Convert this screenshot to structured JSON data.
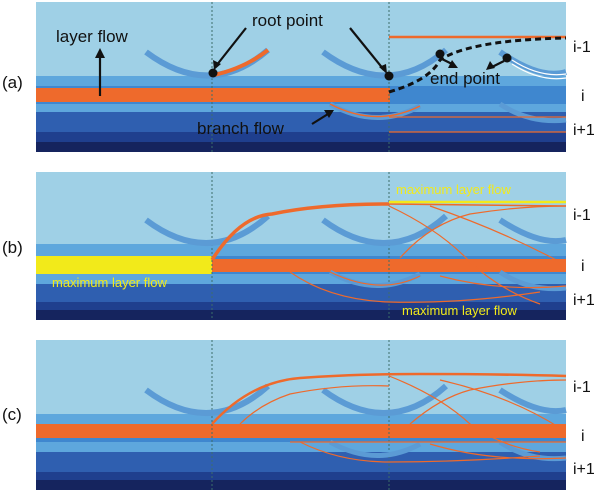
{
  "panels": [
    {
      "id": "(a)",
      "level_labels": [
        "i-1",
        "i",
        "i+1"
      ],
      "annotations": {
        "layer_flow": "layer flow",
        "root_point": "root point",
        "end_point": "end point",
        "branch_flow": "branch flow"
      }
    },
    {
      "id": "(b)",
      "level_labels": [
        "i-1",
        "i",
        "i+1"
      ],
      "annotations": {
        "max_top": "maximum layer flow",
        "max_left": "maximum layer flow",
        "max_bottom": "maximum layer flow"
      }
    },
    {
      "id": "(c)",
      "level_labels": [
        "i-1",
        "i",
        "i+1"
      ]
    }
  ],
  "colors": {
    "sky": "#9fd0e6",
    "band_light": "#5ea7dd",
    "band_mid": "#3f87cf",
    "band_deep": "#2f5fb0",
    "band_darker": "#1f3f8e",
    "band_navy": "#15245e",
    "flow_orange": "#ee6a2c",
    "branch_blue": "#5b9bd5",
    "max_yellow": "#f2ea1a",
    "divider": "#3c6e6a"
  }
}
